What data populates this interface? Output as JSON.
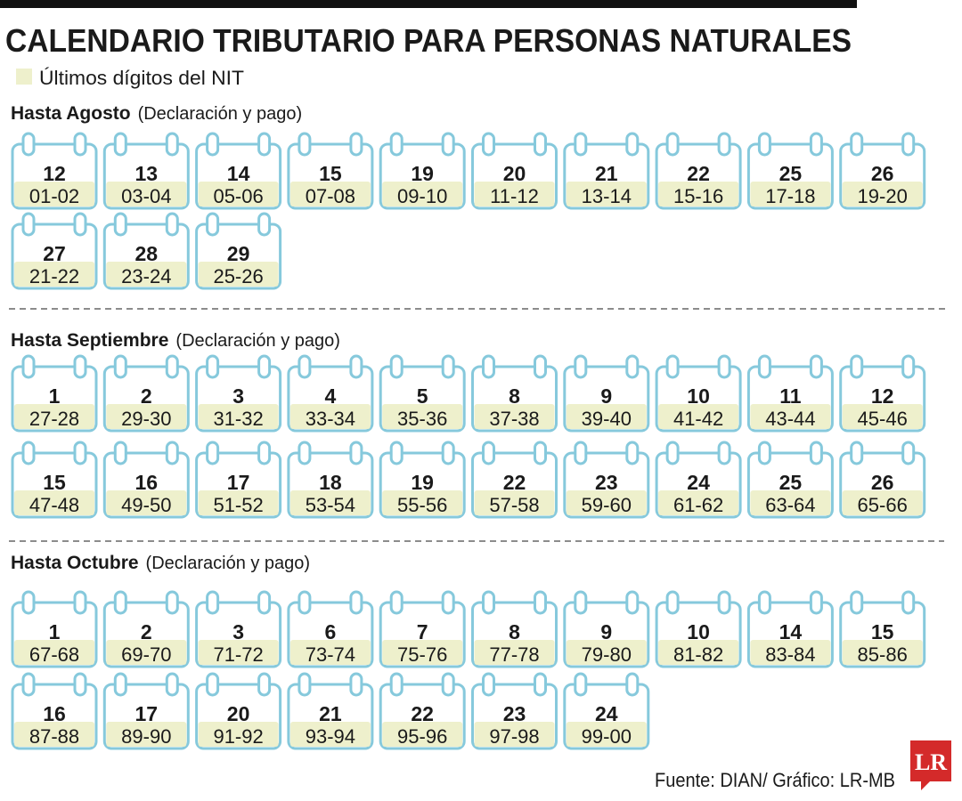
{
  "title": "CALENDARIO TRIBUTARIO PARA PERSONAS NATURALES",
  "legend": "Últimos dígitos del NIT",
  "sections": [
    {
      "heading": "Hasta Agosto",
      "note": "(Declaración y pago)",
      "items": [
        {
          "day": "12",
          "digits": "01-02"
        },
        {
          "day": "13",
          "digits": "03-04"
        },
        {
          "day": "14",
          "digits": "05-06"
        },
        {
          "day": "15",
          "digits": "07-08"
        },
        {
          "day": "19",
          "digits": "09-10"
        },
        {
          "day": "20",
          "digits": "11-12"
        },
        {
          "day": "21",
          "digits": "13-14"
        },
        {
          "day": "22",
          "digits": "15-16"
        },
        {
          "day": "25",
          "digits": "17-18"
        },
        {
          "day": "26",
          "digits": "19-20"
        },
        {
          "day": "27",
          "digits": "21-22"
        },
        {
          "day": "28",
          "digits": "23-24"
        },
        {
          "day": "29",
          "digits": "25-26"
        }
      ]
    },
    {
      "heading": "Hasta Septiembre",
      "note": "(Declaración y pago)",
      "items": [
        {
          "day": "1",
          "digits": "27-28"
        },
        {
          "day": "2",
          "digits": "29-30"
        },
        {
          "day": "3",
          "digits": "31-32"
        },
        {
          "day": "4",
          "digits": "33-34"
        },
        {
          "day": "5",
          "digits": "35-36"
        },
        {
          "day": "8",
          "digits": "37-38"
        },
        {
          "day": "9",
          "digits": "39-40"
        },
        {
          "day": "10",
          "digits": "41-42"
        },
        {
          "day": "11",
          "digits": "43-44"
        },
        {
          "day": "12",
          "digits": "45-46"
        },
        {
          "day": "15",
          "digits": "47-48"
        },
        {
          "day": "16",
          "digits": "49-50"
        },
        {
          "day": "17",
          "digits": "51-52"
        },
        {
          "day": "18",
          "digits": "53-54"
        },
        {
          "day": "19",
          "digits": "55-56"
        },
        {
          "day": "22",
          "digits": "57-58"
        },
        {
          "day": "23",
          "digits": "59-60"
        },
        {
          "day": "24",
          "digits": "61-62"
        },
        {
          "day": "25",
          "digits": "63-64"
        },
        {
          "day": "26",
          "digits": "65-66"
        }
      ]
    },
    {
      "heading": "Hasta Octubre",
      "note": "(Declaración y pago)",
      "items": [
        {
          "day": "1",
          "digits": "67-68"
        },
        {
          "day": "2",
          "digits": "69-70"
        },
        {
          "day": "3",
          "digits": "71-72"
        },
        {
          "day": "6",
          "digits": "73-74"
        },
        {
          "day": "7",
          "digits": "75-76"
        },
        {
          "day": "8",
          "digits": "77-78"
        },
        {
          "day": "9",
          "digits": "79-80"
        },
        {
          "day": "10",
          "digits": "81-82"
        },
        {
          "day": "14",
          "digits": "83-84"
        },
        {
          "day": "15",
          "digits": "85-86"
        },
        {
          "day": "16",
          "digits": "87-88"
        },
        {
          "day": "17",
          "digits": "89-90"
        },
        {
          "day": "20",
          "digits": "91-92"
        },
        {
          "day": "21",
          "digits": "93-94"
        },
        {
          "day": "22",
          "digits": "95-96"
        },
        {
          "day": "23",
          "digits": "97-98"
        },
        {
          "day": "24",
          "digits": "99-00"
        }
      ]
    }
  ],
  "source": "Fuente: DIAN/ Gráfico: LR-MB",
  "logo": "LR"
}
